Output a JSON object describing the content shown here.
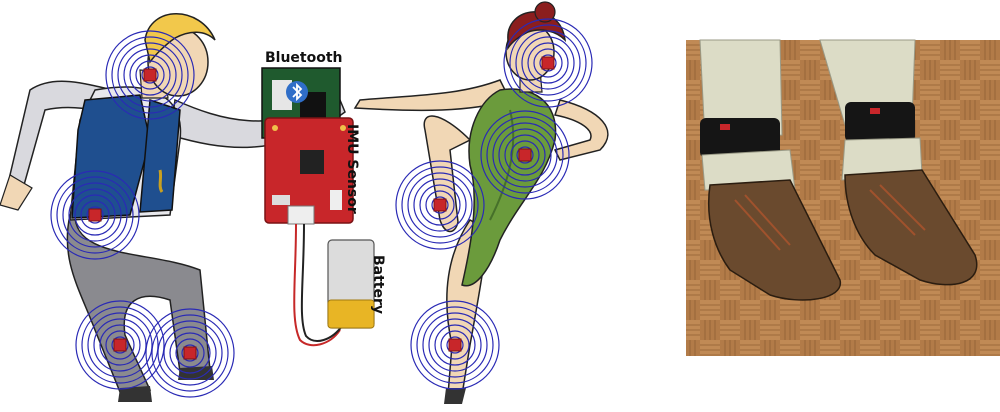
{
  "labels": {
    "bluetooth": "Bluetooth",
    "imu": "IMU Sensor",
    "battery": "Battery"
  },
  "colors": {
    "rings": "#2a2ab5",
    "board": "#c8262a",
    "skin": "#f1d7b5",
    "hair_male": "#f2c84b",
    "hair_female": "#8b1e1e",
    "vest": "#1f4f8f",
    "trousers": "#8a8a8f",
    "dress": "#6b9b3c",
    "floor": "#b07a45"
  },
  "icons": [
    "bluetooth-icon"
  ]
}
